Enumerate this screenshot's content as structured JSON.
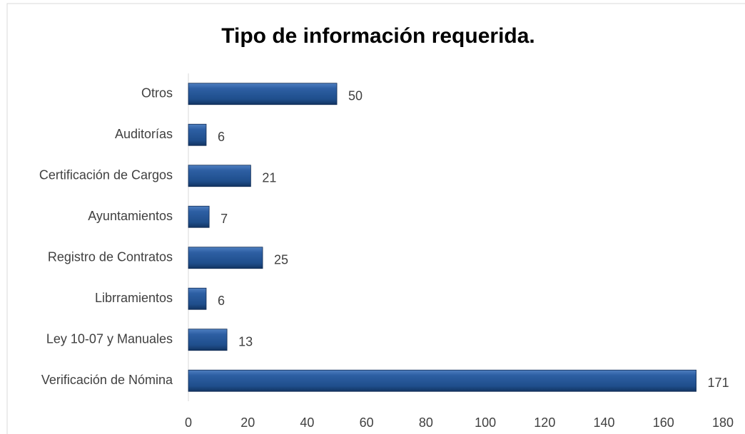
{
  "chart_data": {
    "type": "bar",
    "orientation": "horizontal",
    "title": "Tipo de información requerida.",
    "categories": [
      "Otros",
      "Auditorías",
      "Certificación de Cargos",
      "Ayuntamientos",
      "Registro de Contratos",
      "Librramientos",
      "Ley 10-07 y Manuales",
      "Verificación de Nómina"
    ],
    "values": [
      50,
      6,
      21,
      7,
      25,
      6,
      13,
      171
    ],
    "color": "#1f4e8c",
    "xlim": [
      0,
      180
    ],
    "xticks": [
      0,
      20,
      40,
      60,
      80,
      100,
      120,
      140,
      160,
      180
    ],
    "grid": false
  }
}
